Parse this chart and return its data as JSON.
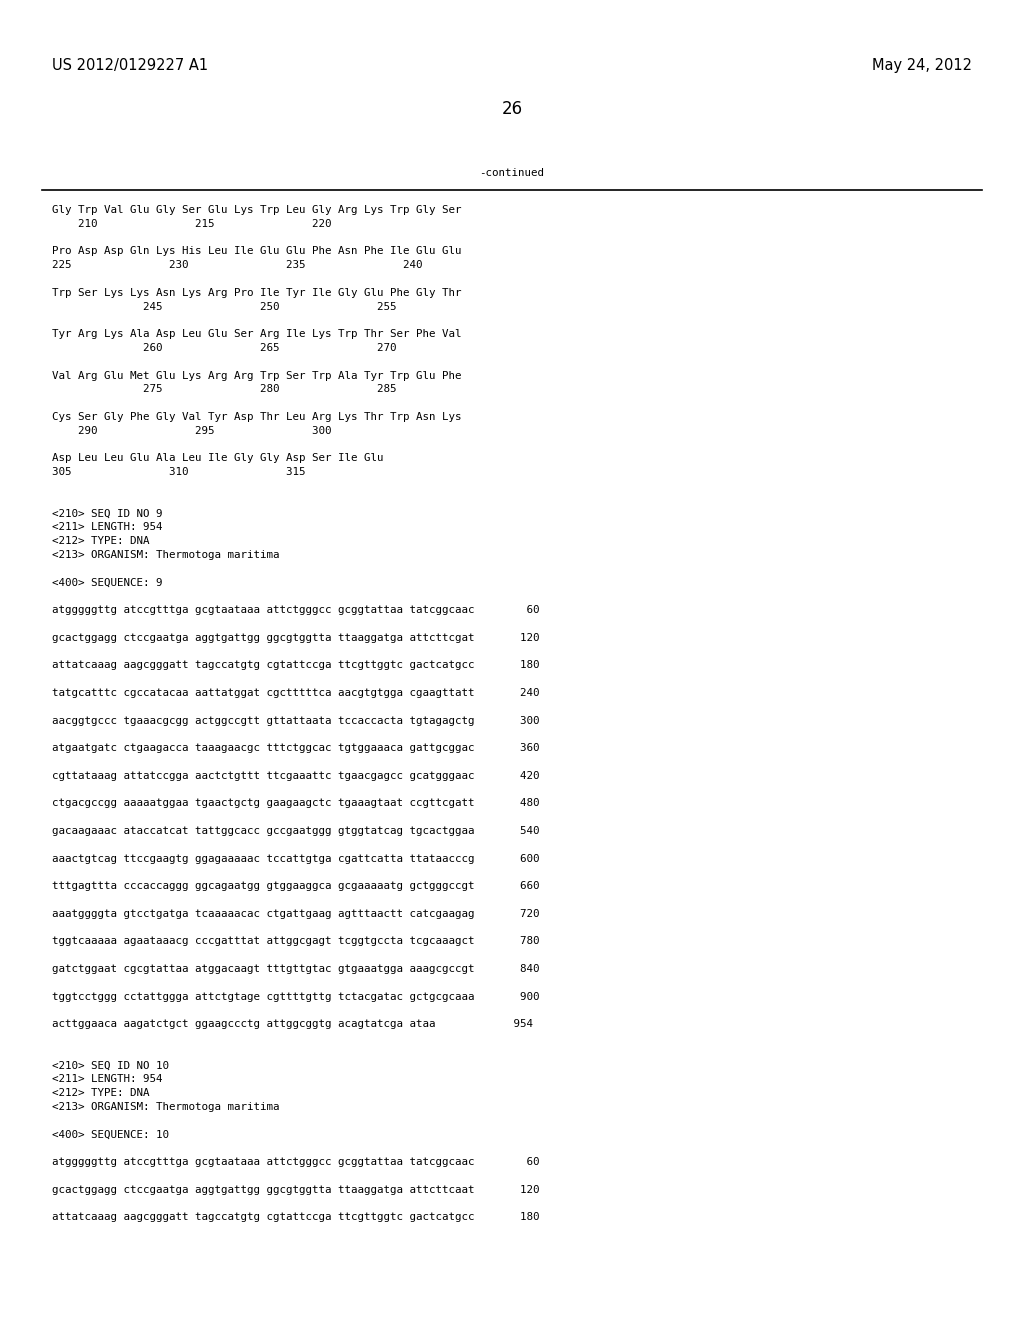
{
  "header_left": "US 2012/0129227 A1",
  "header_right": "May 24, 2012",
  "page_number": "26",
  "continued_label": "-continued",
  "background_color": "#ffffff",
  "text_color": "#000000",
  "font_size_header": 10.5,
  "font_size_page": 12,
  "font_size_body": 7.8,
  "content_lines": [
    "Gly Trp Val Glu Gly Ser Glu Lys Trp Leu Gly Arg Lys Trp Gly Ser",
    "    210               215               220",
    "",
    "Pro Asp Asp Gln Lys His Leu Ile Glu Glu Phe Asn Phe Ile Glu Glu",
    "225               230               235               240",
    "",
    "Trp Ser Lys Lys Asn Lys Arg Pro Ile Tyr Ile Gly Glu Phe Gly Thr",
    "              245               250               255",
    "",
    "Tyr Arg Lys Ala Asp Leu Glu Ser Arg Ile Lys Trp Thr Ser Phe Val",
    "              260               265               270",
    "",
    "Val Arg Glu Met Glu Lys Arg Arg Trp Ser Trp Ala Tyr Trp Glu Phe",
    "              275               280               285",
    "",
    "Cys Ser Gly Phe Gly Val Tyr Asp Thr Leu Arg Lys Thr Trp Asn Lys",
    "    290               295               300",
    "",
    "Asp Leu Leu Glu Ala Leu Ile Gly Gly Asp Ser Ile Glu",
    "305               310               315",
    "",
    "",
    "<210> SEQ ID NO 9",
    "<211> LENGTH: 954",
    "<212> TYPE: DNA",
    "<213> ORGANISM: Thermotoga maritima",
    "",
    "<400> SEQUENCE: 9",
    "",
    "atgggggttg atccgtttga gcgtaataaa attctgggcc gcggtattaa tatcggcaac        60",
    "",
    "gcactggagg ctccgaatga aggtgattgg ggcgtggtta ttaaggatga attcttcgat       120",
    "",
    "attatcaaag aagcgggatt tagccatgtg cgtattccga ttcgttggtc gactcatgcc       180",
    "",
    "tatgcatttc cgccatacaa aattatggat cgctttttca aacgtgtgga cgaagttatt       240",
    "",
    "aacggtgccc tgaaacgcgg actggccgtt gttattaata tccaccacta tgtagagctg       300",
    "",
    "atgaatgatc ctgaagacca taaagaacgc tttctggcac tgtggaaaca gattgcggac       360",
    "",
    "cgttataaag attatccgga aactctgttt ttcgaaattc tgaacgagcc gcatgggaac       420",
    "",
    "ctgacgccgg aaaaatggaa tgaactgctg gaagaagctc tgaaagtaat ccgttcgatt       480",
    "",
    "gacaagaaac ataccatcat tattggcacc gccgaatggg gtggtatcag tgcactggaa       540",
    "",
    "aaactgtcag ttccgaagtg ggagaaaaac tccattgtga cgattcatta ttataacccg       600",
    "",
    "tttgagttta cccaccaggg ggcagaatgg gtggaaggca gcgaaaaatg gctgggccgt       660",
    "",
    "aaatggggta gtcctgatga tcaaaaacac ctgattgaag agtttaactt catcgaagag       720",
    "",
    "tggtcaaaaa agaataaacg cccgatttat attggcgagt tcggtgccta tcgcaaagct       780",
    "",
    "gatctggaat cgcgtattaa atggacaagt tttgttgtac gtgaaatgga aaagcgccgt       840",
    "",
    "tggtcctggg cctattggga attctgtage cgttttgttg tctacgatac gctgcgcaaa       900",
    "",
    "acttggaaca aagatctgct ggaagccctg attggcggtg acagtatcga ataa            954",
    "",
    "",
    "<210> SEQ ID NO 10",
    "<211> LENGTH: 954",
    "<212> TYPE: DNA",
    "<213> ORGANISM: Thermotoga maritima",
    "",
    "<400> SEQUENCE: 10",
    "",
    "atgggggttg atccgtttga gcgtaataaa attctgggcc gcggtattaa tatcggcaac        60",
    "",
    "gcactggagg ctccgaatga aggtgattgg ggcgtggtta ttaaggatga attcttcaat       120",
    "",
    "attatcaaag aagcgggatt tagccatgtg cgtattccga ttcgttggtc gactcatgcc       180"
  ]
}
